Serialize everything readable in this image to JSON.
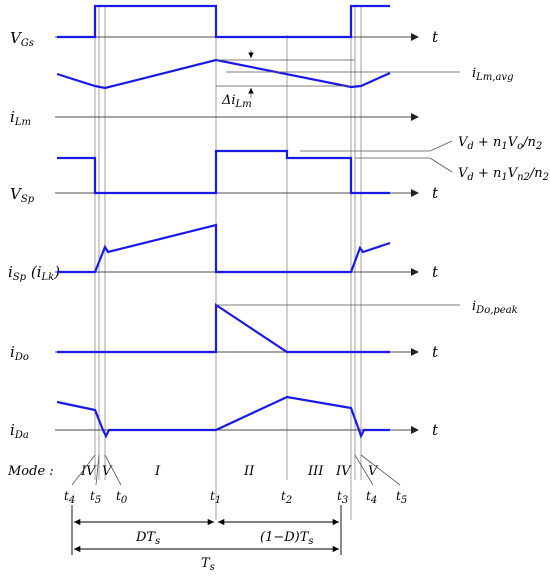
{
  "signals": {
    "vgs": {
      "main": "V",
      "sub": "Gs"
    },
    "ilm": {
      "main": "i",
      "sub": "Lm"
    },
    "vsp": {
      "main": "V",
      "sub": "Sp"
    },
    "isp": {
      "main": "i",
      "sub": "Sp",
      "paren_main": "i",
      "paren_sub": "Lk"
    },
    "ido": {
      "main": "i",
      "sub": "Do"
    },
    "ida": {
      "main": "i",
      "sub": "Da"
    }
  },
  "axis_label": "t",
  "annotations": {
    "ilm_avg": {
      "main": "i",
      "sub": "Lm,avg"
    },
    "delta_ilm": {
      "main": "Δi",
      "sub": "Lm"
    },
    "vsp_high": {
      "text": "V",
      "sub1": "d",
      "mid": " + n",
      "sub2": "1",
      "mid2": "V",
      "sub3": "o",
      "mid3": "/n",
      "sub4": "2"
    },
    "vsp_mid": {
      "text": "V",
      "sub1": "d",
      "mid": " + n",
      "sub2": "1",
      "mid2": "V",
      "sub3": "n2",
      "mid3": "/n",
      "sub4": "2"
    },
    "ido_peak": {
      "main": "i",
      "sub": "Do,peak"
    }
  },
  "mode": {
    "label": "Mode :",
    "segments": [
      "IV",
      "V",
      "I",
      "II",
      "III",
      "IV",
      "V"
    ]
  },
  "times": [
    {
      "main": "t",
      "sub": "4"
    },
    {
      "main": "t",
      "sub": "5"
    },
    {
      "main": "t",
      "sub": "0"
    },
    {
      "main": "t",
      "sub": "1"
    },
    {
      "main": "t",
      "sub": "2"
    },
    {
      "main": "t",
      "sub": "3"
    },
    {
      "main": "t",
      "sub": "4"
    },
    {
      "main": "t",
      "sub": "5"
    }
  ],
  "dimensions": {
    "dts": {
      "main": "DT",
      "sub": "s"
    },
    "one_minus_d": {
      "main": "(1−D)T",
      "sub": "s"
    },
    "ts": {
      "main": "T",
      "sub": "s"
    }
  }
}
